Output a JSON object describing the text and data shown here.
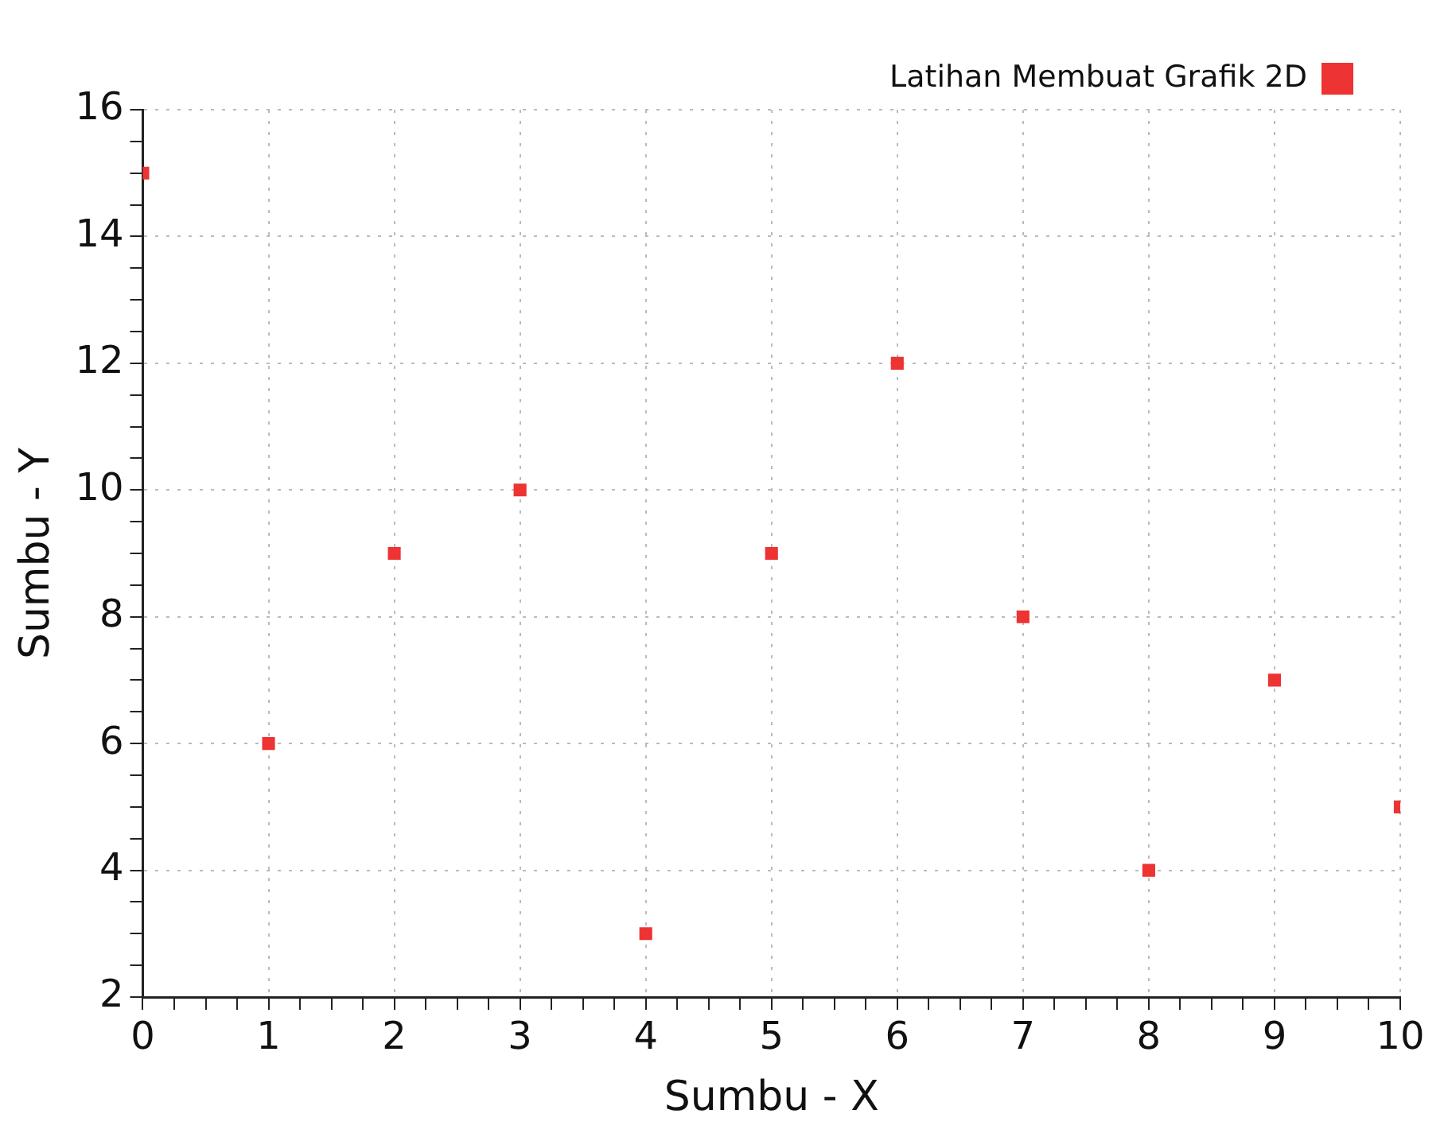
{
  "chart_data": {
    "type": "scatter",
    "xlabel": "Sumbu - X",
    "ylabel": "Sumbu - Y",
    "x": [
      0,
      1,
      2,
      3,
      4,
      5,
      6,
      7,
      8,
      9,
      10
    ],
    "series": [
      {
        "name": "Latihan Membuat Grafik 2D",
        "color": "#ee3333",
        "values": [
          15,
          6,
          9,
          10,
          3,
          9,
          12,
          8,
          4,
          7,
          5
        ]
      }
    ],
    "xlim": [
      0,
      10
    ],
    "ylim": [
      2,
      16
    ],
    "xticks": [
      0,
      {
        "value": 0.25,
        "label": null
      },
      {
        "value": 0.5,
        "label": null
      },
      {
        "value": 0.75,
        "label": null
      },
      1,
      {
        "value": 1.25,
        "label": null
      },
      {
        "value": 1.5,
        "label": null
      },
      {
        "value": 1.75,
        "label": null
      },
      2,
      {
        "value": 2.25,
        "label": null
      },
      {
        "value": 2.5,
        "label": null
      },
      {
        "value": 2.75,
        "label": null
      },
      3,
      {
        "value": 3.25,
        "label": null
      },
      {
        "value": 3.5,
        "label": null
      },
      {
        "value": 3.75,
        "label": null
      },
      4,
      {
        "value": 4.25,
        "label": null
      },
      {
        "value": 4.5,
        "label": null
      },
      {
        "value": 4.75,
        "label": null
      },
      5,
      {
        "value": 5.25,
        "label": null
      },
      {
        "value": 5.5,
        "label": null
      },
      {
        "value": 5.75,
        "label": null
      },
      6,
      {
        "value": 6.25,
        "label": null
      },
      {
        "value": 6.5,
        "label": null
      },
      {
        "value": 6.75,
        "label": null
      },
      7,
      {
        "value": 7.25,
        "label": null
      },
      {
        "value": 7.5,
        "label": null
      },
      {
        "value": 7.75,
        "label": null
      },
      8,
      {
        "value": 8.25,
        "label": null
      },
      {
        "value": 8.5,
        "label": null
      },
      {
        "value": 8.75,
        "label": null
      },
      9,
      {
        "value": 9.25,
        "label": null
      },
      {
        "value": 9.5,
        "label": null
      },
      {
        "value": 9.75,
        "label": null
      },
      10
    ],
    "yticks": [
      2,
      {
        "value": 2.5,
        "label": null
      },
      {
        "value": 3,
        "label": null
      },
      {
        "value": 3.5,
        "label": null
      },
      4,
      {
        "value": 4.5,
        "label": null
      },
      {
        "value": 5,
        "label": null
      },
      {
        "value": 5.5,
        "label": null
      },
      6,
      {
        "value": 6.5,
        "label": null
      },
      {
        "value": 7,
        "label": null
      },
      {
        "value": 7.5,
        "label": null
      },
      8,
      {
        "value": 8.5,
        "label": null
      },
      {
        "value": 9,
        "label": null
      },
      {
        "value": 9.5,
        "label": null
      },
      10,
      {
        "value": 10.5,
        "label": null
      },
      {
        "value": 11,
        "label": null
      },
      {
        "value": 11.5,
        "label": null
      },
      12,
      {
        "value": 12.5,
        "label": null
      },
      {
        "value": 13,
        "label": null
      },
      {
        "value": 13.5,
        "label": null
      },
      14,
      {
        "value": 14.5,
        "label": null
      },
      {
        "value": 15,
        "label": null
      },
      {
        "value": 15.5,
        "label": null
      },
      16
    ],
    "grid": true,
    "legend": "top right",
    "marker": "square"
  }
}
